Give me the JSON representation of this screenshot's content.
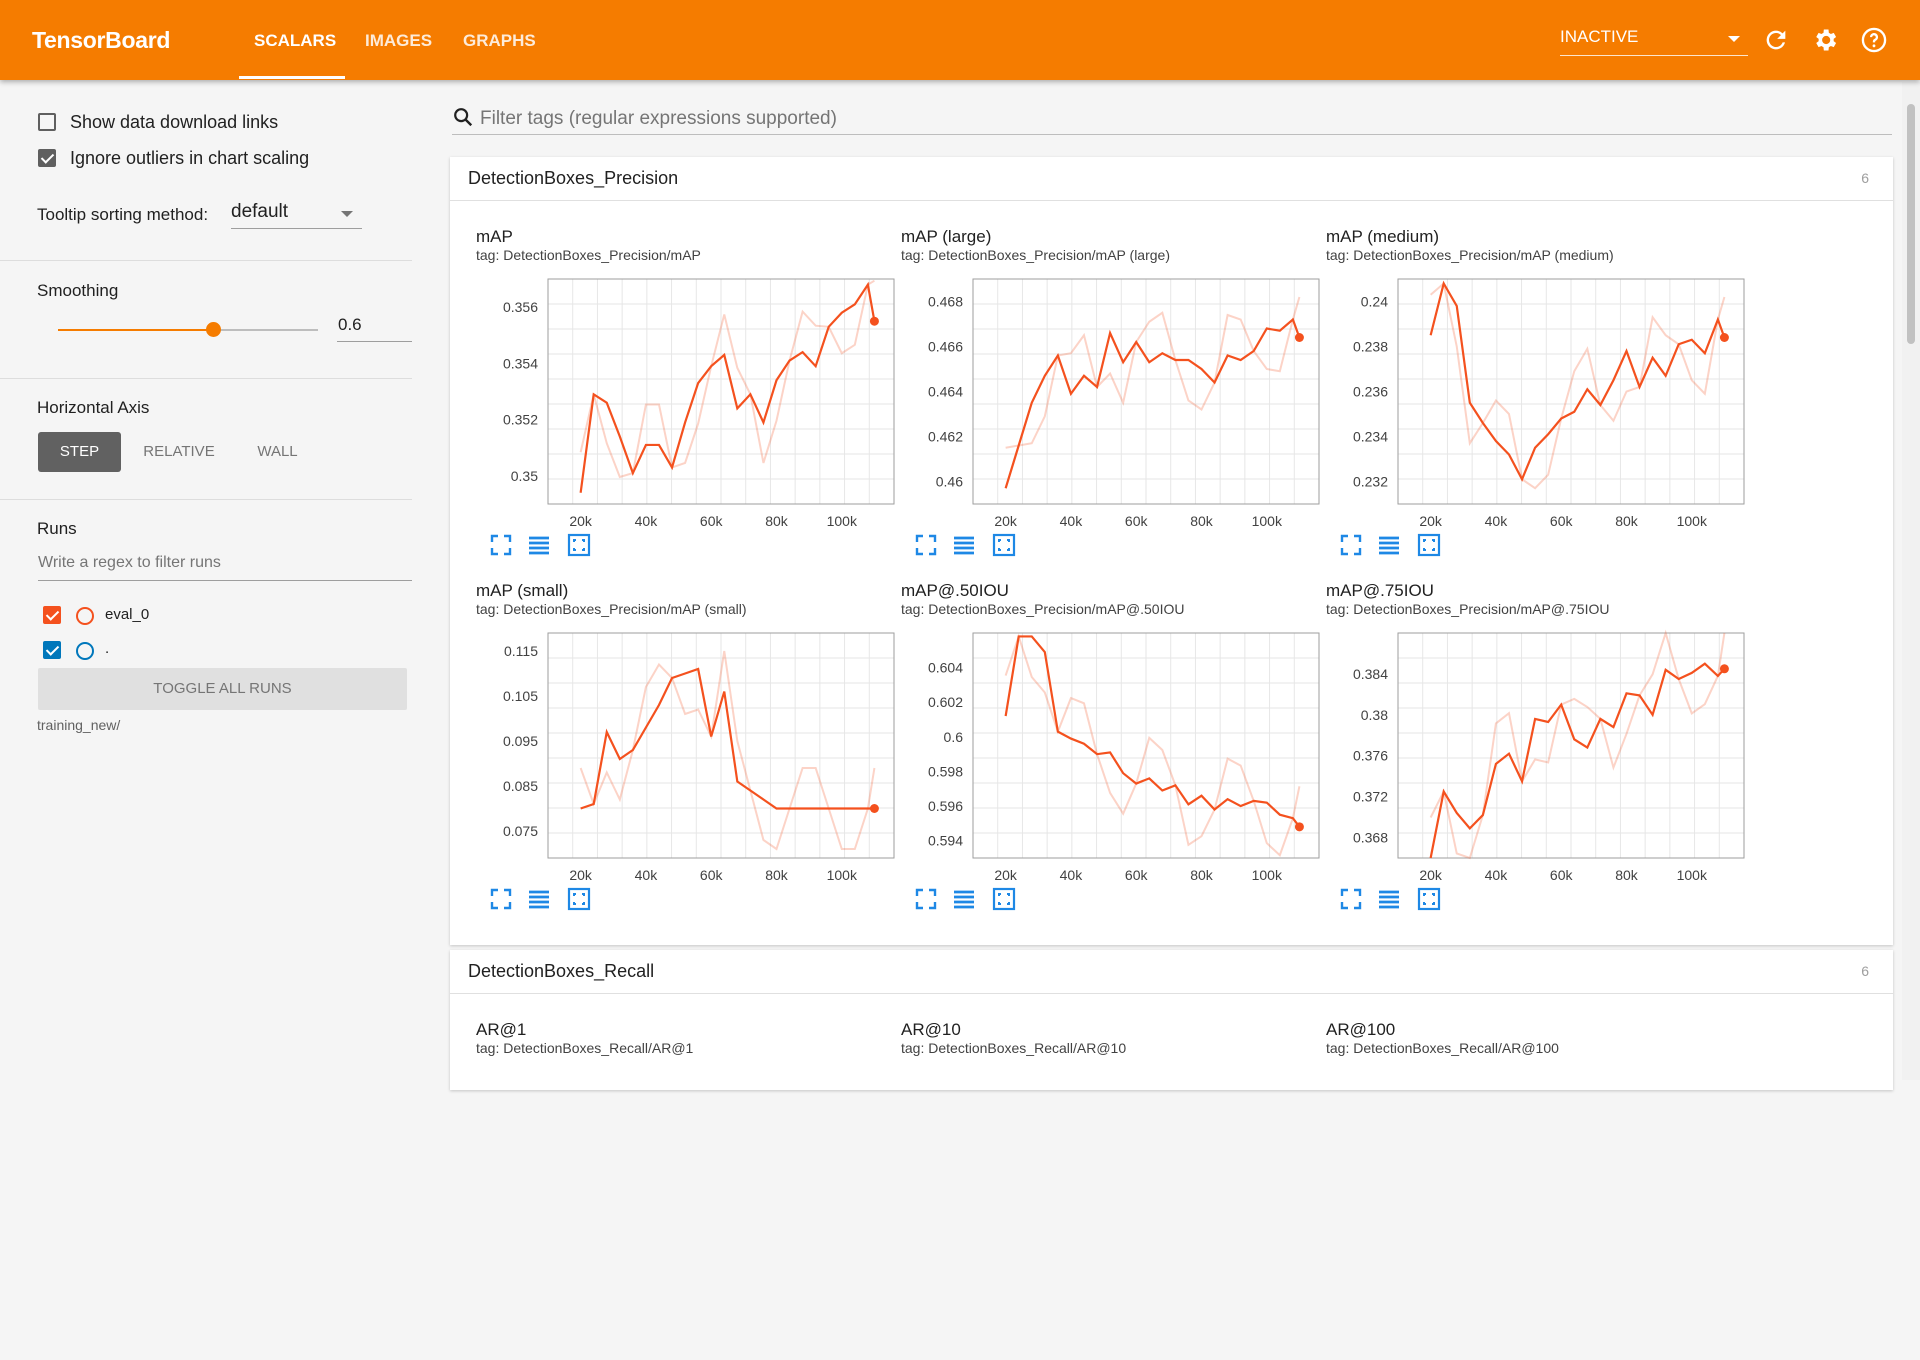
{
  "app": {
    "title": "TensorBoard"
  },
  "tabs": [
    "SCALARS",
    "IMAGES",
    "GRAPHS"
  ],
  "toolbar": {
    "status": "INACTIVE"
  },
  "sidebar": {
    "show_download": "Show data download links",
    "ignore_outliers": "Ignore outliers in chart scaling",
    "tooltip_label": "Tooltip sorting method:",
    "tooltip_value": "default",
    "smoothing_label": "Smoothing",
    "smoothing_value": "0.6",
    "smoothing_fraction": 0.6,
    "haxis_label": "Horizontal Axis",
    "haxis_options": [
      "STEP",
      "RELATIVE",
      "WALL"
    ],
    "runs_label": "Runs",
    "runs_filter_placeholder": "Write a regex to filter runs",
    "runs": [
      {
        "name": "eval_0",
        "color": "#f4511e"
      },
      {
        "name": ".",
        "color": "#0077bb"
      }
    ],
    "toggle_all": "TOGGLE ALL RUNS",
    "logdir": "training_new/"
  },
  "filter": {
    "placeholder": "Filter tags (regular expressions supported)"
  },
  "groups": [
    {
      "title": "DetectionBoxes_Precision",
      "count": "6"
    },
    {
      "title": "DetectionBoxes_Recall",
      "count": "6"
    }
  ],
  "colors": {
    "accent": "#f57c00",
    "series": "#f4511e",
    "icon": "#1e88e5"
  },
  "chart_data": [
    {
      "type": "line",
      "title": "mAP",
      "tag": "tag: DetectionBoxes_Precision/mAP",
      "x": [
        20000,
        24000,
        28000,
        32000,
        36000,
        40000,
        44000,
        48000,
        52000,
        56000,
        60000,
        64000,
        68000,
        72000,
        76000,
        80000,
        84000,
        88000,
        92000,
        96000,
        100000,
        104000,
        108000,
        110000
      ],
      "series": [
        {
          "values": [
            0.3494,
            0.3529,
            0.3526,
            0.3514,
            0.3501,
            0.3511,
            0.3511,
            0.3503,
            0.3519,
            0.3533,
            0.3539,
            0.3543,
            0.3524,
            0.3529,
            0.3519,
            0.3534,
            0.3541,
            0.3544,
            0.3539,
            0.3553,
            0.3558,
            0.3561,
            0.3568,
            0.3555
          ]
        }
      ],
      "xticks": [
        "20k",
        "40k",
        "60k",
        "80k",
        "100k"
      ],
      "yticks": [
        "0.35",
        "0.352",
        "0.354",
        "0.356"
      ],
      "ylim": [
        0.349,
        0.357
      ],
      "xlim": [
        10000,
        116000
      ]
    },
    {
      "type": "line",
      "title": "mAP (large)",
      "tag": "tag: DetectionBoxes_Precision/mAP (large)",
      "x": [
        20000,
        24000,
        28000,
        32000,
        36000,
        40000,
        44000,
        48000,
        52000,
        56000,
        60000,
        64000,
        68000,
        72000,
        76000,
        80000,
        84000,
        88000,
        92000,
        96000,
        100000,
        104000,
        108000,
        110000
      ],
      "series": [
        {
          "values": [
            0.4597,
            0.4616,
            0.4635,
            0.4647,
            0.4656,
            0.4639,
            0.4647,
            0.4642,
            0.4666,
            0.4653,
            0.4662,
            0.4653,
            0.4657,
            0.4654,
            0.4654,
            0.465,
            0.4644,
            0.4656,
            0.4654,
            0.4658,
            0.4668,
            0.4667,
            0.4672,
            0.4664
          ]
        }
      ],
      "xticks": [
        "20k",
        "40k",
        "60k",
        "80k",
        "100k"
      ],
      "yticks": [
        "0.46",
        "0.462",
        "0.464",
        "0.466",
        "0.468"
      ],
      "ylim": [
        0.459,
        0.469
      ],
      "xlim": [
        10000,
        116000
      ]
    },
    {
      "type": "line",
      "title": "mAP (medium)",
      "tag": "tag: DetectionBoxes_Precision/mAP (medium)",
      "x": [
        20000,
        24000,
        28000,
        32000,
        36000,
        40000,
        44000,
        48000,
        52000,
        56000,
        60000,
        64000,
        68000,
        72000,
        76000,
        80000,
        84000,
        88000,
        92000,
        96000,
        100000,
        104000,
        108000,
        110000
      ],
      "series": [
        {
          "values": [
            0.2385,
            0.2408,
            0.2398,
            0.2355,
            0.2346,
            0.2338,
            0.2332,
            0.2321,
            0.2335,
            0.2341,
            0.2348,
            0.2351,
            0.2361,
            0.2354,
            0.2365,
            0.2378,
            0.2362,
            0.2375,
            0.2367,
            0.2381,
            0.2383,
            0.2377,
            0.2392,
            0.2384
          ]
        }
      ],
      "xticks": [
        "20k",
        "40k",
        "60k",
        "80k",
        "100k"
      ],
      "yticks": [
        "0.232",
        "0.234",
        "0.236",
        "0.238",
        "0.24"
      ],
      "ylim": [
        0.231,
        0.241
      ],
      "xlim": [
        10000,
        116000
      ]
    },
    {
      "type": "line",
      "title": "mAP (small)",
      "tag": "tag: DetectionBoxes_Precision/mAP (small)",
      "x": [
        20000,
        24000,
        28000,
        32000,
        36000,
        40000,
        44000,
        48000,
        52000,
        56000,
        60000,
        64000,
        68000,
        72000,
        76000,
        80000,
        84000,
        88000,
        92000,
        96000,
        100000,
        104000,
        108000,
        110000
      ],
      "series": [
        {
          "values": [
            0.08,
            0.081,
            0.097,
            0.091,
            0.093,
            0.098,
            0.103,
            0.109,
            0.11,
            0.111,
            0.096,
            0.106,
            0.086,
            0.084,
            0.082,
            0.08,
            0.08,
            0.08,
            0.08,
            0.08,
            0.08,
            0.08,
            0.08,
            0.08
          ]
        }
      ],
      "xticks": [
        "20k",
        "40k",
        "60k",
        "80k",
        "100k"
      ],
      "yticks": [
        "0.075",
        "0.085",
        "0.095",
        "0.105",
        "0.115"
      ],
      "ylim": [
        0.069,
        0.119
      ],
      "xlim": [
        10000,
        116000
      ]
    },
    {
      "type": "line",
      "title": "mAP@.50IOU",
      "tag": "tag: DetectionBoxes_Precision/mAP@.50IOU",
      "x": [
        20000,
        24000,
        28000,
        32000,
        36000,
        40000,
        44000,
        48000,
        52000,
        56000,
        60000,
        64000,
        68000,
        72000,
        76000,
        80000,
        84000,
        88000,
        92000,
        96000,
        100000,
        104000,
        108000,
        110000
      ],
      "series": [
        {
          "values": [
            0.6012,
            0.6058,
            0.6058,
            0.6049,
            0.6003,
            0.5999,
            0.5996,
            0.599,
            0.5991,
            0.5979,
            0.5973,
            0.5976,
            0.5969,
            0.5972,
            0.5961,
            0.5966,
            0.5958,
            0.5964,
            0.596,
            0.5963,
            0.5962,
            0.5955,
            0.5953,
            0.5948
          ]
        }
      ],
      "xticks": [
        "20k",
        "40k",
        "60k",
        "80k",
        "100k"
      ],
      "yticks": [
        "0.594",
        "0.596",
        "0.598",
        "0.6",
        "0.602",
        "0.604"
      ],
      "ylim": [
        0.593,
        0.606
      ],
      "xlim": [
        10000,
        116000
      ]
    },
    {
      "type": "line",
      "title": "mAP@.75IOU",
      "tag": "tag: DetectionBoxes_Precision/mAP@.75IOU",
      "x": [
        20000,
        24000,
        28000,
        32000,
        36000,
        40000,
        44000,
        48000,
        52000,
        56000,
        60000,
        64000,
        68000,
        72000,
        76000,
        80000,
        84000,
        88000,
        92000,
        96000,
        100000,
        104000,
        108000,
        110000
      ],
      "series": [
        {
          "values": [
            0.366,
            0.3725,
            0.3704,
            0.3689,
            0.3702,
            0.3752,
            0.3762,
            0.3735,
            0.3796,
            0.3793,
            0.381,
            0.3776,
            0.3768,
            0.3796,
            0.3788,
            0.3821,
            0.3819,
            0.38,
            0.3844,
            0.3835,
            0.3841,
            0.385,
            0.3838,
            0.3845
          ]
        }
      ],
      "xticks": [
        "20k",
        "40k",
        "60k",
        "80k",
        "100k"
      ],
      "yticks": [
        "0.368",
        "0.372",
        "0.376",
        "0.38",
        "0.384"
      ],
      "ylim": [
        0.366,
        0.388
      ],
      "xlim": [
        10000,
        116000
      ]
    }
  ],
  "recall_charts": [
    {
      "title": "AR@1",
      "tag": "tag: DetectionBoxes_Recall/AR@1"
    },
    {
      "title": "AR@10",
      "tag": "tag: DetectionBoxes_Recall/AR@10"
    },
    {
      "title": "AR@100",
      "tag": "tag: DetectionBoxes_Recall/AR@100"
    }
  ]
}
